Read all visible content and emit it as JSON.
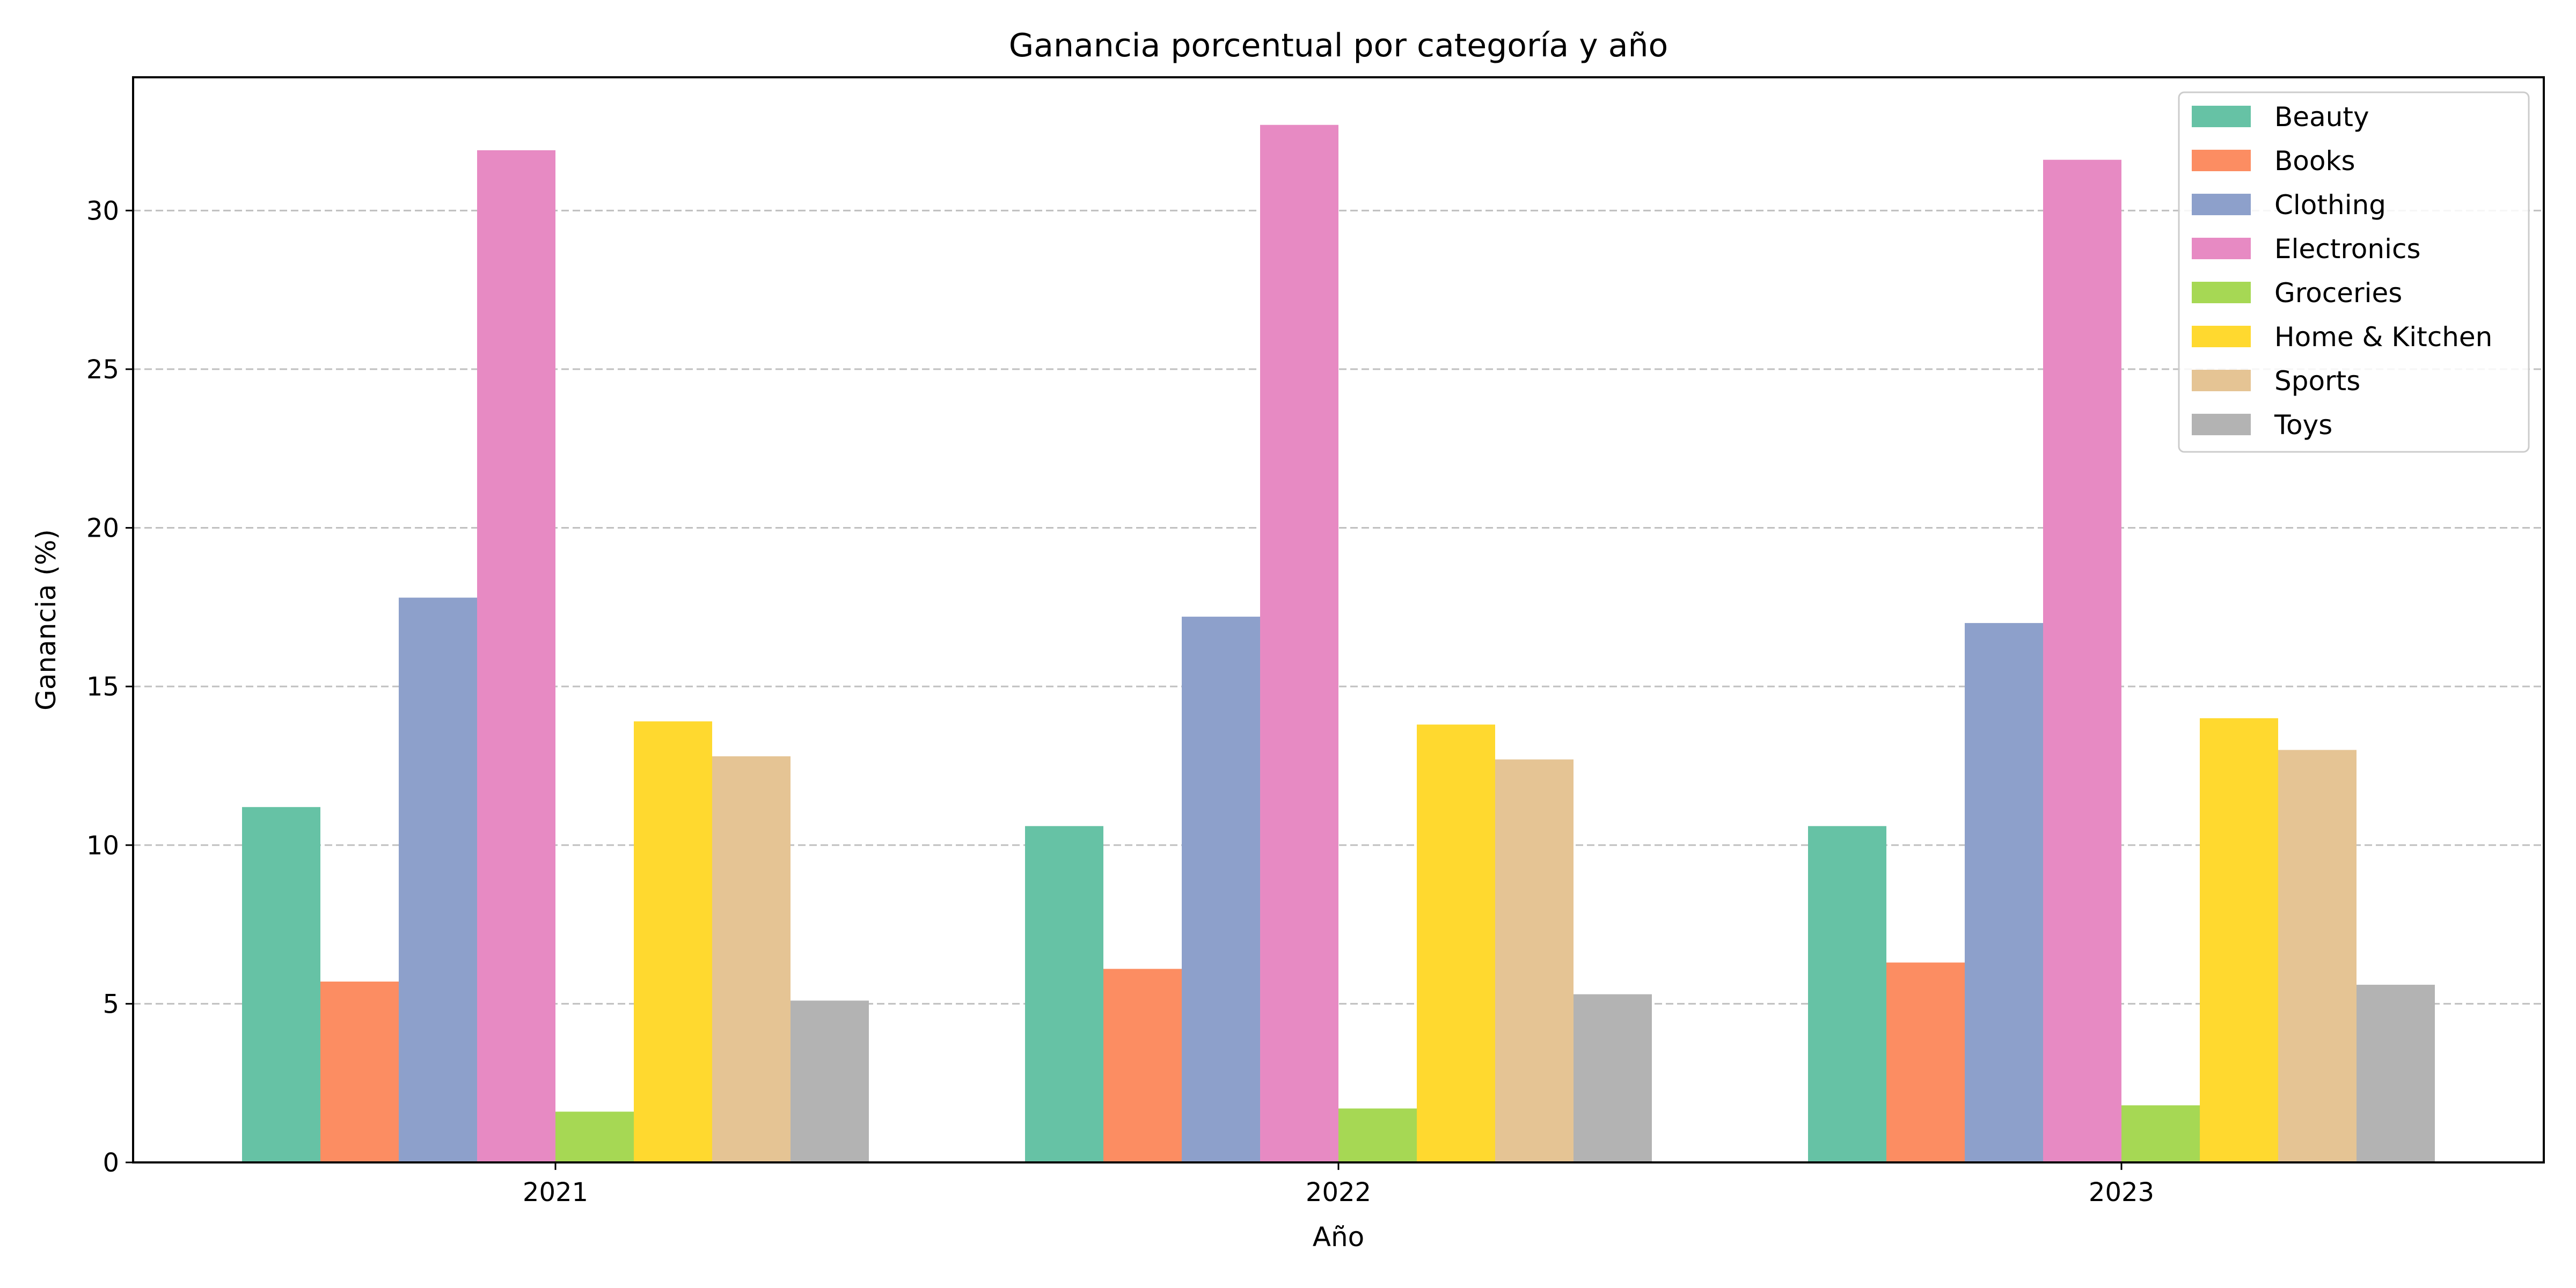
{
  "chart_data": {
    "type": "bar",
    "title": "Ganancia porcentual por categoría y año",
    "xlabel": "Año",
    "ylabel": "Ganancia (%)",
    "categories": [
      "2021",
      "2022",
      "2023"
    ],
    "ylim": [
      0,
      34.2
    ],
    "yticks": [
      0,
      5,
      10,
      15,
      20,
      25,
      30
    ],
    "grid": "horizontal dashed",
    "legend_position": "top-right",
    "series": [
      {
        "name": "Beauty",
        "color": "#66c2a5",
        "values": [
          11.2,
          10.6,
          10.6
        ]
      },
      {
        "name": "Books",
        "color": "#fc8d62",
        "values": [
          5.7,
          6.1,
          6.3
        ]
      },
      {
        "name": "Clothing",
        "color": "#8da0cb",
        "values": [
          17.8,
          17.2,
          17.0
        ]
      },
      {
        "name": "Electronics",
        "color": "#e78ac3",
        "values": [
          31.9,
          32.7,
          31.6
        ]
      },
      {
        "name": "Groceries",
        "color": "#a6d854",
        "values": [
          1.6,
          1.7,
          1.8
        ]
      },
      {
        "name": "Home & Kitchen",
        "color": "#ffd92f",
        "values": [
          13.9,
          13.8,
          14.0
        ]
      },
      {
        "name": "Sports",
        "color": "#e5c494",
        "values": [
          12.8,
          12.7,
          13.0
        ]
      },
      {
        "name": "Toys",
        "color": "#b3b3b3",
        "values": [
          5.1,
          5.3,
          5.6
        ]
      }
    ]
  }
}
